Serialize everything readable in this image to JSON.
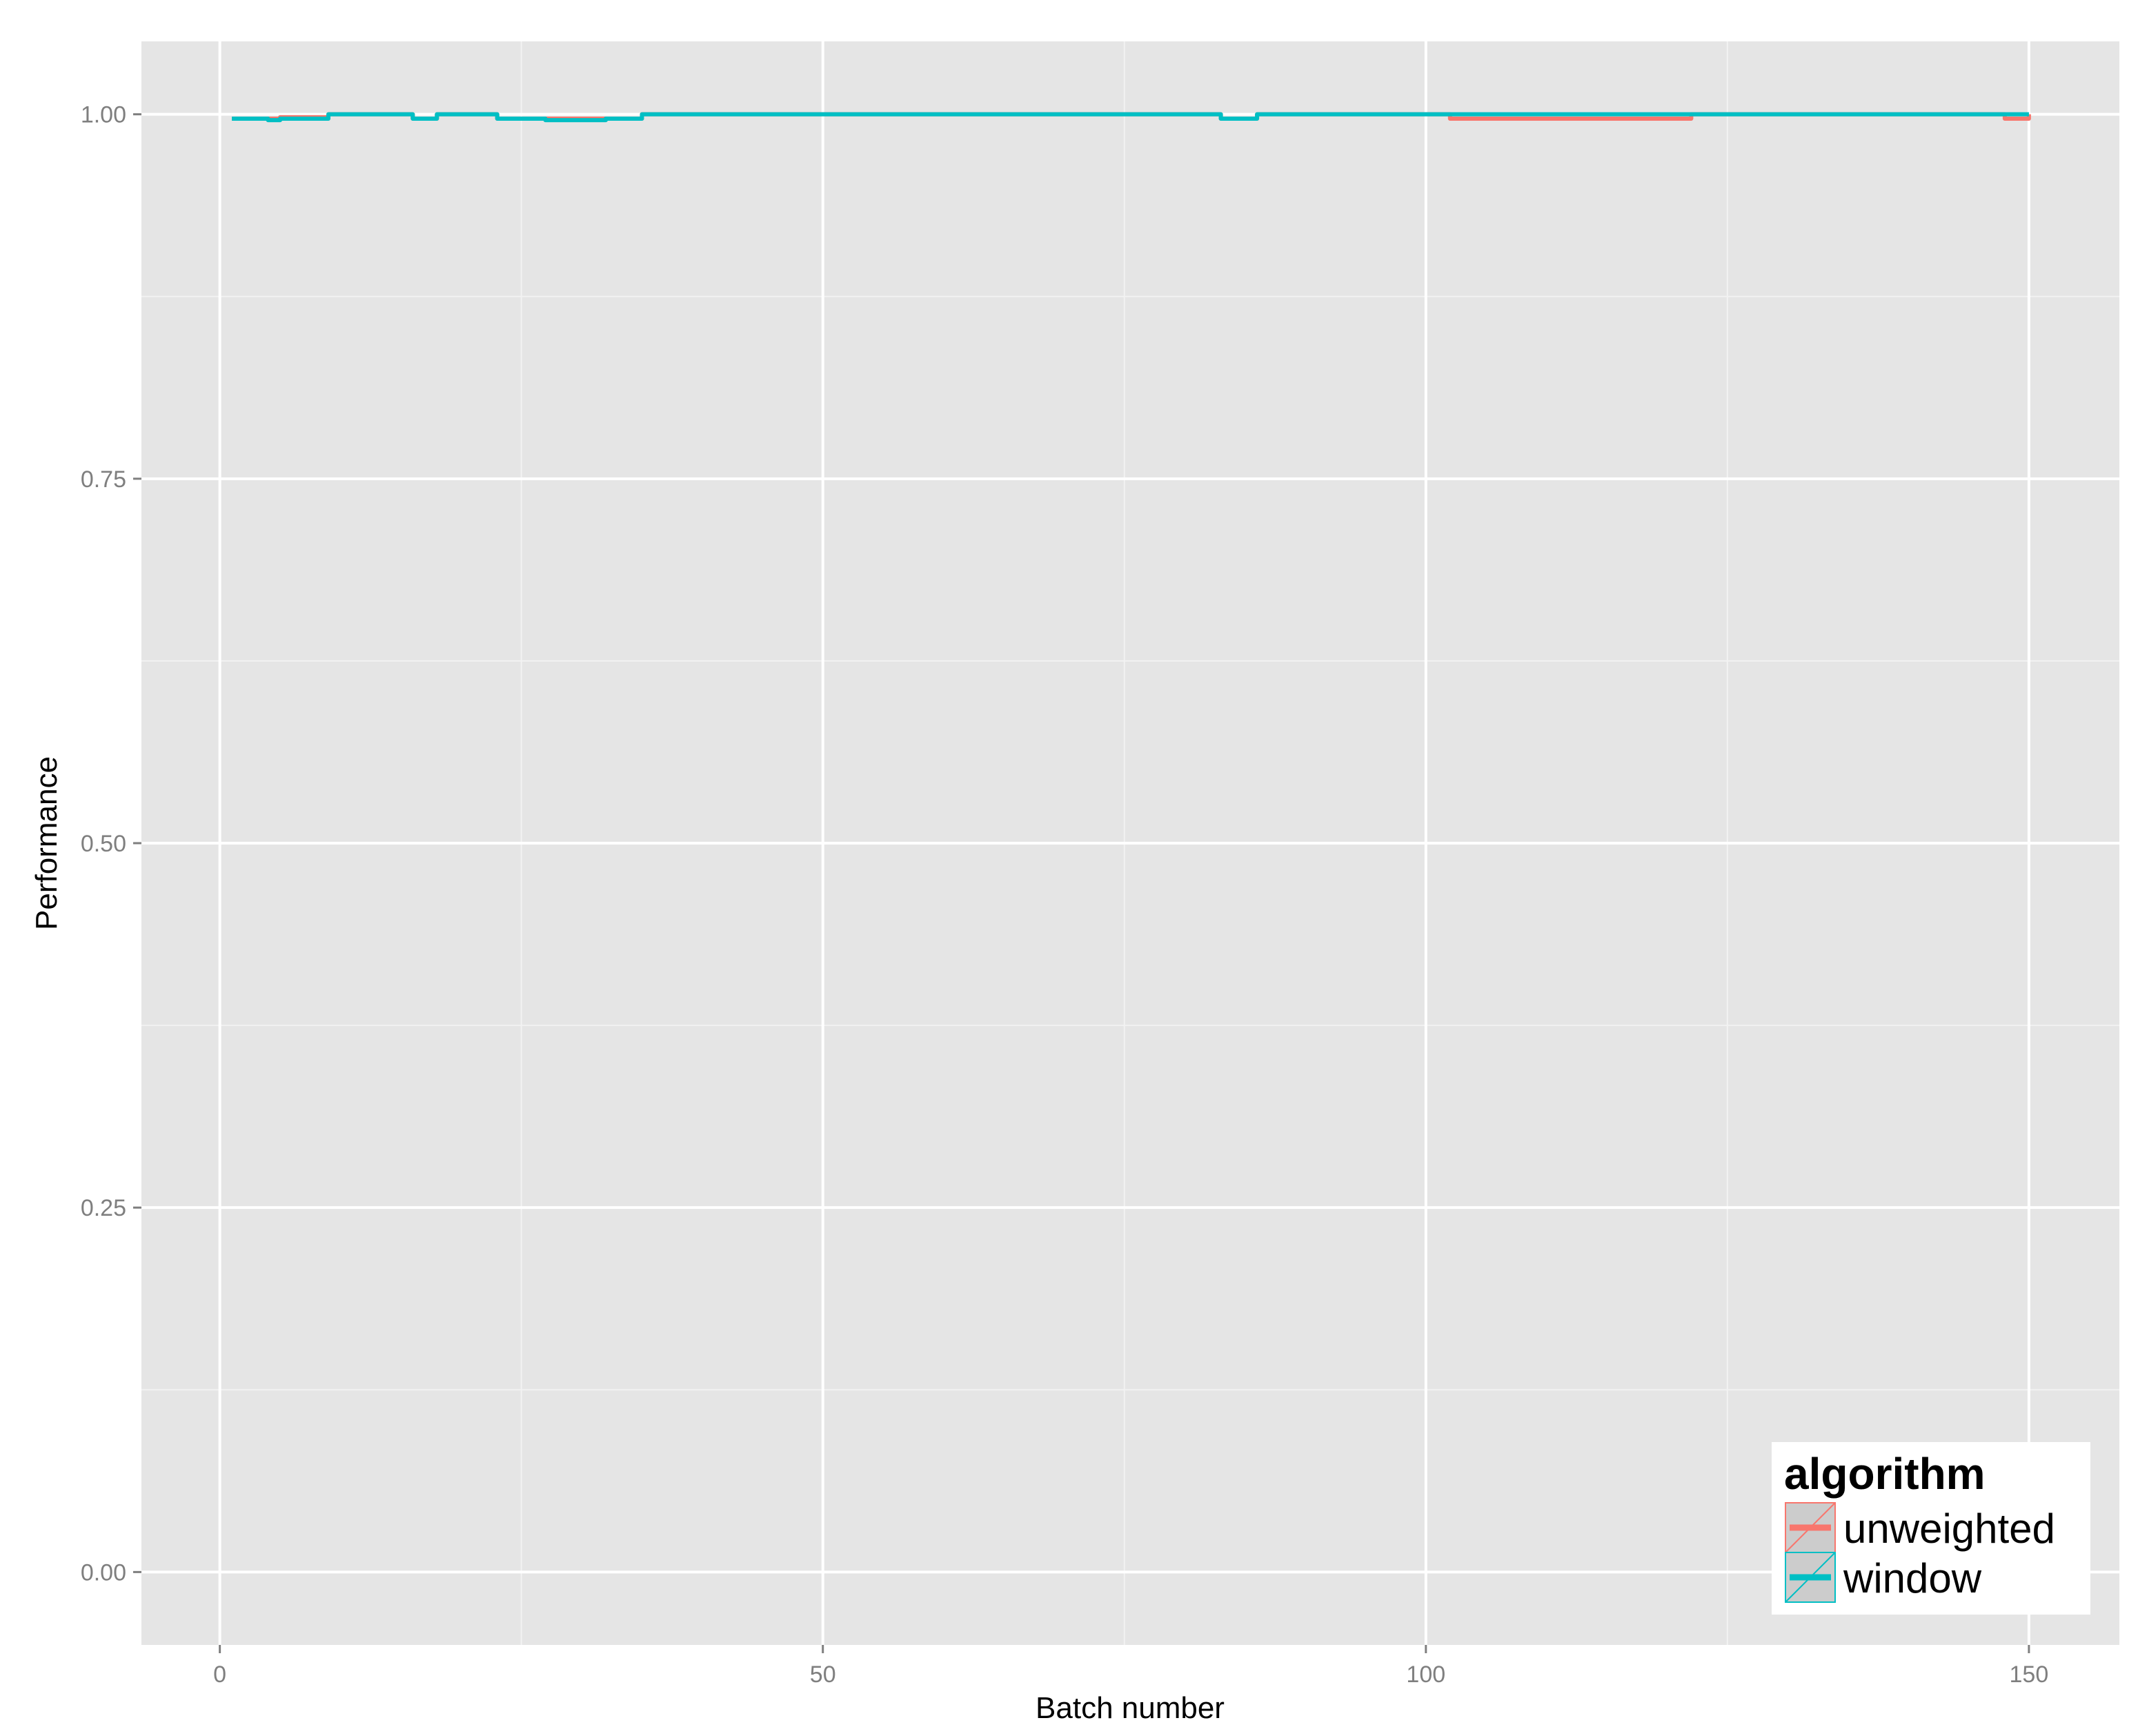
{
  "chart_data": {
    "type": "line",
    "title": "",
    "xlabel": "Batch number",
    "ylabel": "Performance",
    "xlim": [
      -6.5,
      157.5
    ],
    "ylim": [
      -0.05,
      1.05
    ],
    "x_ticks": [
      0,
      50,
      100,
      150
    ],
    "x_tick_labels": [
      "0",
      "50",
      "100",
      "150"
    ],
    "y_ticks": [
      0.0,
      0.25,
      0.5,
      0.75,
      1.0
    ],
    "y_tick_labels": [
      "0.00",
      "0.25",
      "0.50",
      "0.75",
      "1.00"
    ],
    "grid": true,
    "legend": {
      "title": "algorithm",
      "placement": "bottom-right",
      "entries": [
        "unweighted",
        "window"
      ]
    },
    "series": [
      {
        "name": "unweighted",
        "color": "#F8766D",
        "x": [
          1,
          4,
          5,
          8,
          9,
          15,
          16,
          17,
          18,
          22,
          23,
          34,
          35,
          82,
          83,
          85,
          86,
          101,
          102,
          121,
          122,
          147,
          148,
          149,
          150
        ],
        "y": [
          0.997,
          0.997,
          0.998,
          0.998,
          1.0,
          1.0,
          0.997,
          0.997,
          1.0,
          1.0,
          0.997,
          0.997,
          1.0,
          1.0,
          0.997,
          0.997,
          1.0,
          1.0,
          0.997,
          0.997,
          1.0,
          1.0,
          0.997,
          0.997,
          1.0
        ]
      },
      {
        "name": "window",
        "color": "#00BFC4",
        "x": [
          1,
          4,
          5,
          8,
          9,
          15,
          16,
          17,
          18,
          22,
          23,
          26,
          27,
          31,
          32,
          34,
          35,
          82,
          83,
          85,
          86,
          150
        ],
        "y": [
          0.997,
          0.996,
          0.997,
          0.997,
          1.0,
          1.0,
          0.997,
          0.997,
          1.0,
          1.0,
          0.997,
          0.997,
          0.996,
          0.996,
          0.997,
          0.997,
          1.0,
          1.0,
          0.997,
          0.997,
          1.0,
          1.0
        ]
      }
    ]
  },
  "colors": {
    "panel_background": "#E5E5E5",
    "grid_major": "#FFFFFF",
    "grid_minor": "#F2F2F2",
    "tick_label": "#7F7F7F",
    "legend_key_background": "#CCCCCC"
  }
}
